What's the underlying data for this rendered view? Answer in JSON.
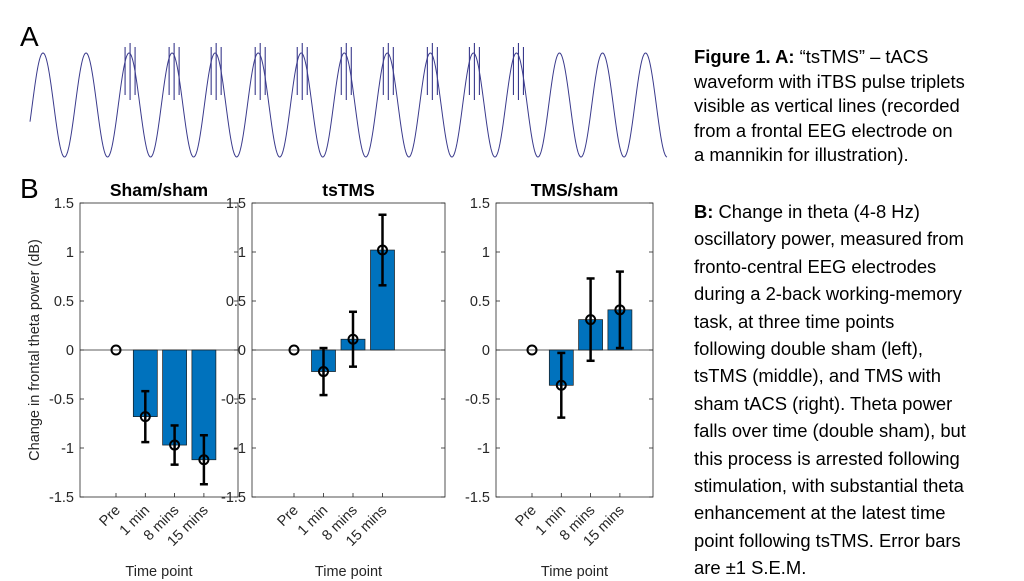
{
  "panel_labels": {
    "a": "A",
    "b": "B"
  },
  "waveform": {
    "color": "#3a3a8c",
    "cycles": 14.8,
    "pulse_start_cycle": 3,
    "pulse_end_cycle": 12,
    "pulses_per_burst": 3
  },
  "caption": {
    "para1_bold": "Figure 1. A:",
    "para1_lines": [
      " “tsTMS” – tACS",
      "waveform with iTBS pulse triplets",
      "visible as vertical lines (recorded",
      "from a frontal EEG electrode on",
      "a mannikin for illustration)."
    ],
    "para2_bold": "B:",
    "para2_lines": [
      " Change in theta (4-8 Hz)",
      "oscillatory power, measured from",
      "fronto-central EEG electrodes",
      "during a 2-back working-memory",
      "task, at three time points",
      "following double sham (left),",
      "tsTMS (middle), and TMS with",
      "sham tACS (right). Theta power",
      "falls over time (double sham), but",
      "this process is arrested following",
      "stimulation, with substantial theta",
      "enhancement at the latest time",
      "point following tsTMS. Error bars",
      "are ±1 S.E.M."
    ]
  },
  "chart_data": [
    {
      "type": "bar",
      "title": "Sham/sham",
      "categories": [
        "Pre",
        "1 min",
        "8 mins",
        "15 mins"
      ],
      "values": [
        0,
        -0.68,
        -0.97,
        -1.12
      ],
      "errors": [
        0,
        0.26,
        0.2,
        0.25
      ],
      "ylabel": "Change in frontal theta power (dB)",
      "xlabel": "Time point",
      "ylim": [
        -1.5,
        1.5
      ],
      "yticks": [
        "1.5",
        "1",
        "0.5",
        "0",
        "-0.5",
        "-1",
        "-1.5"
      ],
      "bar_color": "#0072BD"
    },
    {
      "type": "bar",
      "title": "tsTMS",
      "categories": [
        "Pre",
        "1 min",
        "8 mins",
        "15 mins"
      ],
      "values": [
        0,
        -0.22,
        0.11,
        1.02
      ],
      "errors": [
        0,
        0.24,
        0.28,
        0.36
      ],
      "ylabel": "",
      "xlabel": "Time point",
      "ylim": [
        -1.5,
        1.5
      ],
      "yticks": [
        "1.5",
        "1",
        "0.5",
        "0",
        "-0.5",
        "-1",
        "-1.5"
      ],
      "bar_color": "#0072BD"
    },
    {
      "type": "bar",
      "title": "TMS/sham",
      "categories": [
        "Pre",
        "1 min",
        "8 mins",
        "15 mins"
      ],
      "values": [
        0,
        -0.36,
        0.31,
        0.41
      ],
      "errors": [
        0,
        0.33,
        0.42,
        0.39
      ],
      "ylabel": "",
      "xlabel": "Time point",
      "ylim": [
        -1.5,
        1.5
      ],
      "yticks": [
        "1.5",
        "1",
        "0.5",
        "0",
        "-0.5",
        "-1",
        "-1.5"
      ],
      "bar_color": "#0072BD"
    }
  ]
}
